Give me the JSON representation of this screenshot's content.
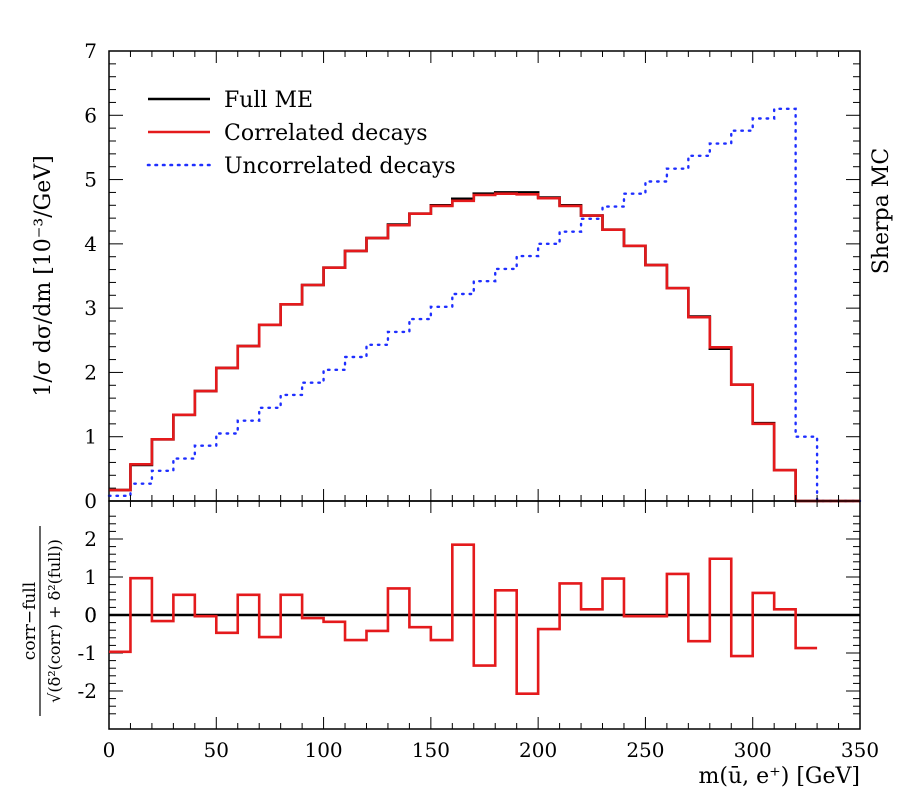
{
  "chart_data": [
    {
      "type": "step",
      "panel": "main",
      "xlim": [
        0,
        350
      ],
      "ylim": [
        0,
        7
      ],
      "ylabel": "1/σ dσ/dm [10⁻³/GeV]",
      "ytick_labels": [
        "0",
        "1",
        "2",
        "3",
        "4",
        "5",
        "6",
        "7"
      ],
      "bin_edges": [
        0,
        10,
        20,
        30,
        40,
        50,
        60,
        70,
        80,
        90,
        100,
        110,
        120,
        130,
        140,
        150,
        160,
        170,
        180,
        190,
        200,
        210,
        220,
        230,
        240,
        250,
        260,
        270,
        280,
        290,
        300,
        310,
        320,
        330,
        340,
        350
      ],
      "series": [
        {
          "name": "Full ME",
          "color": "#000000",
          "style": "solid",
          "values": [
            0.17,
            0.56,
            0.96,
            1.34,
            1.71,
            2.07,
            2.41,
            2.74,
            3.06,
            3.36,
            3.63,
            3.89,
            4.09,
            4.3,
            4.47,
            4.6,
            4.7,
            4.78,
            4.8,
            4.8,
            4.72,
            4.6,
            4.44,
            4.22,
            3.97,
            3.67,
            3.31,
            2.87,
            2.37,
            1.81,
            1.21,
            0.48,
            0.0,
            0.0,
            0.0
          ]
        },
        {
          "name": "Correlated decays",
          "color": "#e41a1c",
          "style": "solid",
          "values": [
            0.17,
            0.57,
            0.96,
            1.34,
            1.71,
            2.07,
            2.41,
            2.74,
            3.06,
            3.36,
            3.63,
            3.89,
            4.09,
            4.29,
            4.47,
            4.59,
            4.67,
            4.76,
            4.78,
            4.77,
            4.71,
            4.59,
            4.44,
            4.22,
            3.97,
            3.67,
            3.31,
            2.86,
            2.39,
            1.81,
            1.2,
            0.48,
            0.0,
            0.0,
            0.0
          ]
        },
        {
          "name": "Uncorrelated decays",
          "color": "#1f2fff",
          "style": "dotted",
          "values": [
            0.08,
            0.27,
            0.47,
            0.66,
            0.86,
            1.05,
            1.25,
            1.45,
            1.65,
            1.84,
            2.04,
            2.24,
            2.43,
            2.63,
            2.83,
            3.02,
            3.22,
            3.42,
            3.61,
            3.81,
            4.0,
            4.19,
            4.39,
            4.58,
            4.78,
            4.97,
            5.17,
            5.37,
            5.56,
            5.76,
            5.95,
            6.1,
            1.0,
            0.0,
            0.0
          ]
        }
      ],
      "legend_position": "top-left",
      "side_label": "Sherpa MC"
    },
    {
      "type": "step",
      "panel": "ratio",
      "xlim": [
        0,
        350
      ],
      "ylim": [
        -3,
        3
      ],
      "xlabel": "m(ū, e⁺) [GeV]",
      "ylabel_numerator": "corr−full",
      "ylabel_denominator": "√(δ²(corr) + δ²(full))",
      "xtick_labels": [
        "0",
        "50",
        "100",
        "150",
        "200",
        "250",
        "300",
        "350"
      ],
      "ytick_labels": [
        "-2",
        "-1",
        "0",
        "1",
        "2"
      ],
      "bin_edges": [
        0,
        10,
        20,
        30,
        40,
        50,
        60,
        70,
        80,
        90,
        100,
        110,
        120,
        130,
        140,
        150,
        160,
        170,
        180,
        190,
        200,
        210,
        220,
        230,
        240,
        250,
        260,
        270,
        280,
        290,
        300,
        310,
        320,
        330
      ],
      "series": [
        {
          "name": "Correlated decays",
          "color": "#e41a1c",
          "values": [
            -0.97,
            0.97,
            -0.16,
            0.53,
            -0.03,
            -0.47,
            0.53,
            -0.58,
            0.53,
            -0.08,
            -0.18,
            -0.66,
            -0.42,
            0.7,
            -0.32,
            -0.66,
            1.85,
            -1.33,
            0.65,
            -2.07,
            -0.37,
            0.83,
            0.15,
            0.96,
            -0.03,
            -0.03,
            1.08,
            -0.69,
            1.48,
            -1.08,
            0.58,
            0.15,
            -0.87
          ]
        },
        {
          "name": "reference",
          "color": "#000000",
          "values": [
            0.0
          ]
        }
      ]
    }
  ]
}
